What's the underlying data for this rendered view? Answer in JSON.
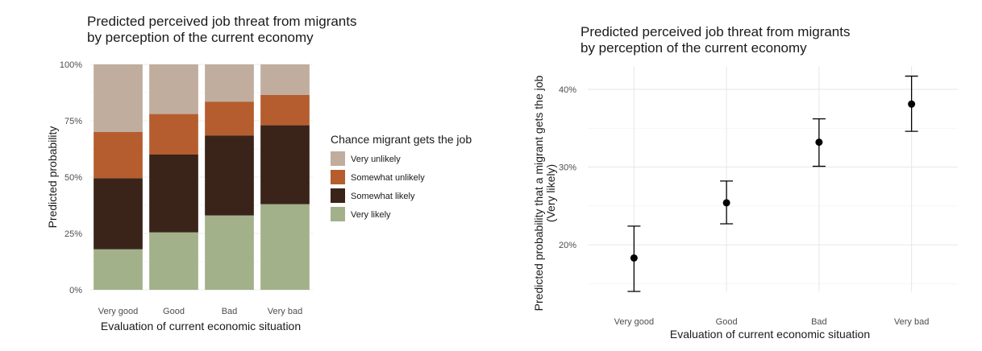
{
  "chart_data": [
    {
      "type": "bar",
      "stacked": true,
      "title_lines": [
        "Predicted perceived job threat from migrants",
        "by perception of the current economy"
      ],
      "xlabel": "Evaluation of current economic situation",
      "ylabel": "Predicted probability",
      "categories": [
        "Very good",
        "Good",
        "Bad",
        "Very bad"
      ],
      "y_ticks": [
        "0%",
        "25%",
        "50%",
        "75%",
        "100%"
      ],
      "ylim": [
        0,
        1
      ],
      "legend_title": "Chance migrant gets the job",
      "legend_position": "right",
      "series": [
        {
          "name": "Very likely",
          "color": "#a3b18a",
          "values": [
            0.18,
            0.255,
            0.33,
            0.38
          ]
        },
        {
          "name": "Somewhat likely",
          "color": "#3a241a",
          "values": [
            0.315,
            0.345,
            0.355,
            0.35
          ]
        },
        {
          "name": "Somewhat unlikely",
          "color": "#b55d2f",
          "values": [
            0.205,
            0.18,
            0.15,
            0.135
          ]
        },
        {
          "name": "Very unlikely",
          "color": "#c0ad9e",
          "values": [
            0.3,
            0.22,
            0.165,
            0.135
          ]
        }
      ],
      "legend_order": [
        "Very unlikely",
        "Somewhat unlikely",
        "Somewhat likely",
        "Very likely"
      ]
    },
    {
      "type": "scatter",
      "error_bars": true,
      "title_lines": [
        "Predicted perceived job threat from migrants",
        "by perception of the current economy"
      ],
      "xlabel": "Evaluation of current economic situation",
      "ylabel_lines": [
        "Predicted probability that a migrant gets the job",
        "(Very likely)"
      ],
      "categories": [
        "Very good",
        "Good",
        "Bad",
        "Very bad"
      ],
      "y_ticks": [
        "20%",
        "30%",
        "40%"
      ],
      "ylim": [
        0.14,
        0.43
      ],
      "points": [
        {
          "x": "Very good",
          "y": 0.183,
          "lower": 0.14,
          "upper": 0.224
        },
        {
          "x": "Good",
          "y": 0.254,
          "lower": 0.227,
          "upper": 0.282
        },
        {
          "x": "Bad",
          "y": 0.332,
          "lower": 0.301,
          "upper": 0.362
        },
        {
          "x": "Very bad",
          "y": 0.381,
          "lower": 0.346,
          "upper": 0.417
        }
      ]
    }
  ]
}
